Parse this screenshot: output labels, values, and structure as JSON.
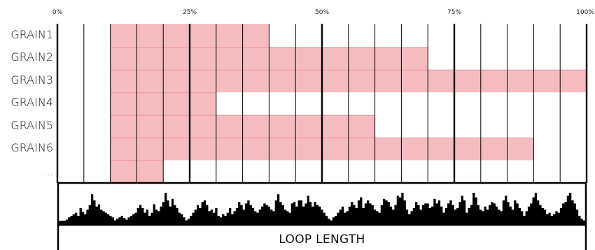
{
  "axis": {
    "ticks": [
      "0%",
      "25%",
      "50%",
      "75%",
      "100%"
    ]
  },
  "grains": [
    {
      "label": "GRAIN1",
      "start": 10,
      "end": 40
    },
    {
      "label": "GRAIN2",
      "start": 10,
      "end": 70
    },
    {
      "label": "GRAIN3",
      "start": 10,
      "end": 100
    },
    {
      "label": "GRAIN4",
      "start": 10,
      "end": 30
    },
    {
      "label": "GRAIN5",
      "start": 10,
      "end": 60
    },
    {
      "label": "GRAIN6",
      "start": 10,
      "end": 90
    },
    {
      "label": "...",
      "start": 10,
      "end": 20
    }
  ],
  "grid": {
    "minor_step": 5,
    "major_step": 25
  },
  "footer": {
    "label": "LOOP LENGTH"
  },
  "colors": {
    "grain_fill": "#f5bcc0",
    "grain_line": "#e8919a",
    "ink": "#000000"
  },
  "waveform": [
    2,
    3,
    3,
    5,
    8,
    10,
    12,
    14,
    10,
    20,
    15,
    12,
    18,
    24,
    38,
    30,
    22,
    25,
    18,
    16,
    14,
    12,
    10,
    8,
    4,
    6,
    8,
    10,
    7,
    5,
    8,
    10,
    12,
    14,
    20,
    24,
    20,
    14,
    18,
    10,
    14,
    25,
    18,
    16,
    22,
    28,
    40,
    30,
    22,
    32,
    24,
    20,
    14,
    12,
    8,
    4,
    6,
    10,
    14,
    18,
    24,
    20,
    28,
    30,
    24,
    16,
    18,
    14,
    20,
    10,
    8,
    12,
    10,
    14,
    20,
    12,
    16,
    20,
    28,
    24,
    18,
    26,
    30,
    24,
    20,
    16,
    14,
    18,
    22,
    26,
    24,
    22,
    18,
    16,
    30,
    38,
    28,
    24,
    18,
    16,
    14,
    26,
    28,
    22,
    30,
    30,
    22,
    26,
    36,
    28,
    22,
    28,
    24,
    22,
    18,
    14,
    10,
    6,
    4,
    8,
    10,
    14,
    18,
    22,
    14,
    16,
    22,
    28,
    24,
    20,
    30,
    34,
    20,
    26,
    30,
    26,
    24,
    18,
    16,
    14,
    24,
    32,
    30,
    28,
    22,
    18,
    24,
    36,
    34,
    40,
    30,
    18,
    12,
    16,
    20,
    28,
    24,
    18,
    24,
    26,
    26,
    20,
    22,
    32,
    26,
    30,
    22,
    14,
    20,
    26,
    30,
    24,
    18,
    20,
    28,
    36,
    30,
    14,
    20,
    24,
    40,
    34,
    24,
    18,
    16,
    22,
    18,
    24,
    28,
    26,
    22,
    18,
    16,
    30,
    36,
    28,
    22,
    18,
    30,
    26,
    20,
    16,
    10,
    16,
    22,
    26,
    34,
    40,
    30,
    24,
    20,
    18,
    12,
    14,
    10,
    12,
    16,
    14,
    20,
    26,
    28,
    36,
    40,
    30,
    26,
    18,
    10,
    6,
    4
  ]
}
